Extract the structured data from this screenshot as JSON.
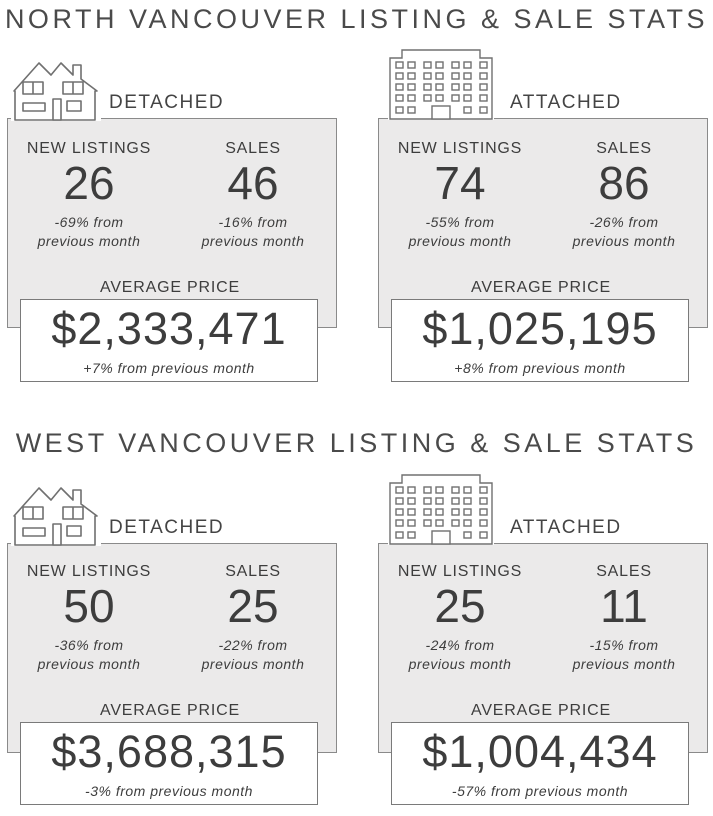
{
  "north": {
    "title": "NORTH VANCOUVER LISTING & SALE STATS",
    "detached": {
      "label": "DETACHED",
      "icon": "house-icon",
      "new_listings_label": "NEW LISTINGS",
      "new_listings_value": "26",
      "new_listings_change_1": "-69% from",
      "new_listings_change_2": "previous month",
      "sales_label": "SALES",
      "sales_value": "46",
      "sales_change_1": "-16% from",
      "sales_change_2": "previous month",
      "avg_label": "AVERAGE PRICE",
      "avg_value": "$2,333,471",
      "avg_change": "+7% from previous month"
    },
    "attached": {
      "label": "ATTACHED",
      "icon": "apartment-building-icon",
      "new_listings_label": "NEW LISTINGS",
      "new_listings_value": "74",
      "new_listings_change_1": "-55% from",
      "new_listings_change_2": "previous month",
      "sales_label": "SALES",
      "sales_value": "86",
      "sales_change_1": "-26% from",
      "sales_change_2": "previous month",
      "avg_label": "AVERAGE PRICE",
      "avg_value": "$1,025,195",
      "avg_change": "+8% from previous month"
    }
  },
  "west": {
    "title": "WEST VANCOUVER LISTING & SALE STATS",
    "detached": {
      "label": "DETACHED",
      "icon": "house-icon",
      "new_listings_label": "NEW LISTINGS",
      "new_listings_value": "50",
      "new_listings_change_1": "-36% from",
      "new_listings_change_2": "previous month",
      "sales_label": "SALES",
      "sales_value": "25",
      "sales_change_1": "-22% from",
      "sales_change_2": "previous month",
      "avg_label": "AVERAGE PRICE",
      "avg_value": "$3,688,315",
      "avg_change": "-3% from previous month"
    },
    "attached": {
      "label": "ATTACHED",
      "icon": "apartment-building-icon",
      "new_listings_label": "NEW LISTINGS",
      "new_listings_value": "25",
      "new_listings_change_1": "-24% from",
      "new_listings_change_2": "previous month",
      "sales_label": "SALES",
      "sales_value": "11",
      "sales_change_1": "-15% from",
      "sales_change_2": "previous month",
      "avg_label": "AVERAGE PRICE",
      "avg_value": "$1,004,434",
      "avg_change": "-57% from previous month"
    }
  },
  "colors": {
    "card_bg": "#ebeaea",
    "text": "#3d3d3d",
    "border": "#8a8a8a"
  }
}
